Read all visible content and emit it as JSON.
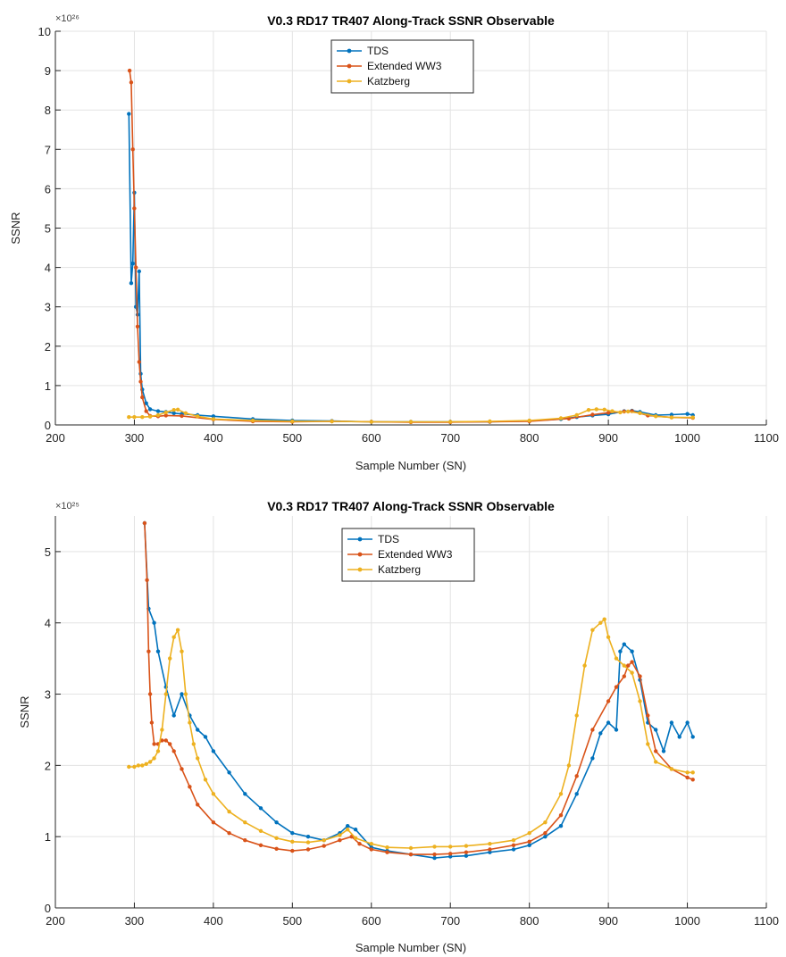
{
  "chart_data": [
    {
      "type": "line",
      "title": "V0.3 RD17 TR407 Along-Track SSNR Observable",
      "xlabel": "Sample Number (SN)",
      "ylabel": "SSNR",
      "y_exponent_label": "×10²⁶",
      "y_multiplier": "1e26",
      "xlim": [
        200,
        1100
      ],
      "ylim": [
        0,
        10
      ],
      "xticks": [
        200,
        300,
        400,
        500,
        600,
        700,
        800,
        900,
        1000,
        1100
      ],
      "yticks": [
        0,
        1,
        2,
        3,
        4,
        5,
        6,
        7,
        8,
        9,
        10
      ],
      "grid": true,
      "legend_position": "top-center",
      "series": [
        {
          "name": "TDS",
          "color": "#0072BD",
          "x": [
            293,
            296,
            298,
            300,
            302,
            304,
            306,
            308,
            310,
            315,
            320,
            330,
            340,
            350,
            360,
            380,
            400,
            450,
            500,
            550,
            600,
            650,
            700,
            750,
            800,
            840,
            860,
            880,
            900,
            920,
            930,
            940,
            960,
            980,
            1000,
            1007
          ],
          "y": [
            7.9,
            3.6,
            4.1,
            5.9,
            3.0,
            2.8,
            3.9,
            1.3,
            0.9,
            0.55,
            0.4,
            0.35,
            0.33,
            0.3,
            0.28,
            0.25,
            0.22,
            0.15,
            0.11,
            0.1,
            0.08,
            0.08,
            0.08,
            0.08,
            0.1,
            0.15,
            0.2,
            0.24,
            0.27,
            0.35,
            0.36,
            0.33,
            0.25,
            0.26,
            0.28,
            0.25
          ]
        },
        {
          "name": "Extended WW3",
          "color": "#D95319",
          "x": [
            294,
            296,
            298,
            300,
            302,
            304,
            306,
            308,
            310,
            315,
            320,
            330,
            340,
            360,
            400,
            450,
            500,
            550,
            600,
            650,
            700,
            750,
            800,
            850,
            880,
            900,
            920,
            930,
            950,
            980,
            1007
          ],
          "y": [
            9.0,
            8.7,
            7.0,
            5.5,
            4.0,
            2.5,
            1.6,
            1.1,
            0.7,
            0.35,
            0.23,
            0.22,
            0.24,
            0.23,
            0.14,
            0.09,
            0.08,
            0.09,
            0.08,
            0.07,
            0.07,
            0.08,
            0.09,
            0.16,
            0.26,
            0.31,
            0.34,
            0.35,
            0.24,
            0.19,
            0.18
          ]
        },
        {
          "name": "Katzberg",
          "color": "#EDB120",
          "x": [
            293,
            300,
            310,
            320,
            330,
            340,
            350,
            355,
            365,
            380,
            400,
            450,
            500,
            550,
            600,
            650,
            700,
            750,
            800,
            840,
            860,
            875,
            885,
            895,
            905,
            915,
            925,
            940,
            960,
            980,
            1007
          ],
          "y": [
            0.2,
            0.2,
            0.2,
            0.21,
            0.25,
            0.32,
            0.38,
            0.39,
            0.3,
            0.22,
            0.15,
            0.11,
            0.09,
            0.09,
            0.08,
            0.08,
            0.08,
            0.09,
            0.11,
            0.17,
            0.25,
            0.38,
            0.4,
            0.39,
            0.35,
            0.32,
            0.34,
            0.3,
            0.22,
            0.19,
            0.19
          ]
        }
      ]
    },
    {
      "type": "line",
      "title": "V0.3 RD17 TR407 Along-Track SSNR Observable",
      "xlabel": "Sample Number (SN)",
      "ylabel": "SSNR",
      "y_exponent_label": "×10²⁵",
      "y_multiplier": "1e25",
      "xlim": [
        200,
        1100
      ],
      "ylim": [
        0,
        5.5
      ],
      "xticks": [
        200,
        300,
        400,
        500,
        600,
        700,
        800,
        900,
        1000,
        1100
      ],
      "yticks": [
        0,
        1,
        2,
        3,
        4,
        5
      ],
      "grid": true,
      "legend_position": "top-center",
      "series": [
        {
          "name": "TDS",
          "color": "#0072BD",
          "x": [
            313,
            318,
            325,
            330,
            340,
            350,
            360,
            370,
            380,
            390,
            400,
            420,
            440,
            460,
            480,
            500,
            520,
            540,
            560,
            570,
            580,
            600,
            620,
            650,
            680,
            700,
            720,
            750,
            780,
            800,
            820,
            840,
            860,
            880,
            890,
            900,
            910,
            915,
            920,
            930,
            940,
            950,
            960,
            970,
            980,
            990,
            1000,
            1007
          ],
          "y": [
            5.4,
            4.2,
            4.0,
            3.6,
            3.1,
            2.7,
            3.0,
            2.7,
            2.5,
            2.4,
            2.2,
            1.9,
            1.6,
            1.4,
            1.2,
            1.05,
            1.0,
            0.95,
            1.05,
            1.15,
            1.1,
            0.85,
            0.8,
            0.75,
            0.7,
            0.72,
            0.73,
            0.78,
            0.82,
            0.88,
            1.0,
            1.15,
            1.6,
            2.1,
            2.45,
            2.6,
            2.5,
            3.6,
            3.7,
            3.6,
            3.2,
            2.6,
            2.5,
            2.2,
            2.6,
            2.4,
            2.6,
            2.4
          ]
        },
        {
          "name": "Extended WW3",
          "color": "#D95319",
          "x": [
            313,
            316,
            318,
            320,
            322,
            325,
            330,
            335,
            340,
            345,
            350,
            360,
            370,
            380,
            400,
            420,
            440,
            460,
            480,
            500,
            520,
            540,
            560,
            575,
            585,
            600,
            620,
            650,
            680,
            700,
            720,
            750,
            780,
            800,
            820,
            840,
            860,
            880,
            900,
            910,
            920,
            925,
            930,
            940,
            950,
            960,
            980,
            1000,
            1007
          ],
          "y": [
            5.4,
            4.6,
            3.6,
            3.0,
            2.6,
            2.3,
            2.3,
            2.35,
            2.35,
            2.3,
            2.2,
            1.95,
            1.7,
            1.45,
            1.2,
            1.05,
            0.95,
            0.88,
            0.83,
            0.8,
            0.82,
            0.87,
            0.95,
            1.0,
            0.9,
            0.82,
            0.78,
            0.75,
            0.75,
            0.76,
            0.78,
            0.82,
            0.88,
            0.93,
            1.05,
            1.3,
            1.85,
            2.5,
            2.9,
            3.1,
            3.25,
            3.4,
            3.45,
            3.25,
            2.7,
            2.2,
            1.95,
            1.83,
            1.8
          ]
        },
        {
          "name": "Katzberg",
          "color": "#EDB120",
          "x": [
            293,
            300,
            305,
            310,
            315,
            320,
            325,
            330,
            335,
            340,
            345,
            350,
            355,
            360,
            365,
            370,
            375,
            380,
            390,
            400,
            420,
            440,
            460,
            480,
            500,
            520,
            540,
            560,
            570,
            580,
            600,
            620,
            650,
            680,
            700,
            720,
            750,
            780,
            800,
            820,
            840,
            850,
            860,
            870,
            880,
            890,
            895,
            900,
            910,
            920,
            930,
            940,
            950,
            960,
            980,
            1000,
            1007
          ],
          "y": [
            1.98,
            1.98,
            2.0,
            2.0,
            2.02,
            2.05,
            2.1,
            2.2,
            2.5,
            3.0,
            3.5,
            3.8,
            3.9,
            3.6,
            3.0,
            2.6,
            2.3,
            2.1,
            1.8,
            1.6,
            1.35,
            1.2,
            1.08,
            0.98,
            0.93,
            0.92,
            0.95,
            1.02,
            1.1,
            0.98,
            0.9,
            0.85,
            0.84,
            0.86,
            0.86,
            0.87,
            0.9,
            0.95,
            1.05,
            1.2,
            1.6,
            2.0,
            2.7,
            3.4,
            3.9,
            4.0,
            4.05,
            3.8,
            3.5,
            3.4,
            3.3,
            2.9,
            2.3,
            2.05,
            1.95,
            1.9,
            1.9
          ]
        }
      ]
    }
  ]
}
